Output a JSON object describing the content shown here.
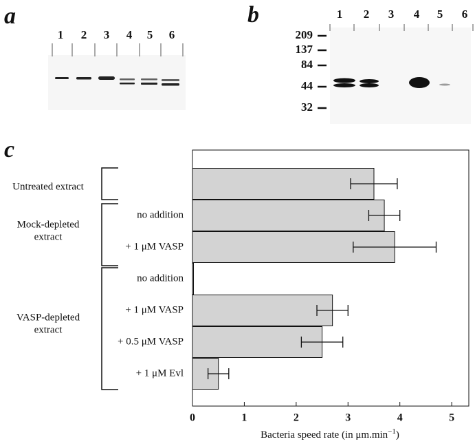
{
  "panel_a": {
    "label": "a",
    "lanes": [
      "1",
      "2",
      "3",
      "4",
      "5",
      "6"
    ]
  },
  "panel_b": {
    "label": "b",
    "lanes": [
      "1",
      "2",
      "3",
      "4",
      "5",
      "6"
    ],
    "markers": [
      "209",
      "137",
      "84",
      "44",
      "32"
    ]
  },
  "panel_c": {
    "label": "c",
    "groups": [
      {
        "lines": [
          "Untreated extract"
        ]
      },
      {
        "lines": [
          "Mock-depleted",
          "extract"
        ]
      },
      {
        "lines": [
          "VASP-depleted",
          "extract"
        ]
      }
    ]
  },
  "chart_data": {
    "type": "bar",
    "orientation": "horizontal",
    "categories": [
      null,
      "no addition",
      "+ 1 μM VASP",
      "no addition",
      "+ 1 μM VASP",
      "+ 0.5 μM VASP",
      "+ 1 μM  Evl"
    ],
    "values": [
      3.5,
      3.7,
      3.9,
      0.02,
      2.7,
      2.5,
      0.5
    ],
    "errors": [
      0.45,
      0.3,
      0.8,
      null,
      0.3,
      0.4,
      0.2
    ],
    "color": "#d3d3d3",
    "xlim": [
      0,
      5.33
    ],
    "xticks": [
      0,
      1,
      2,
      3,
      4,
      5
    ],
    "xlabel": "Bacteria speed rate (in μm.min",
    "xlabel_sup": "−1",
    "xlabel_end": ")"
  }
}
